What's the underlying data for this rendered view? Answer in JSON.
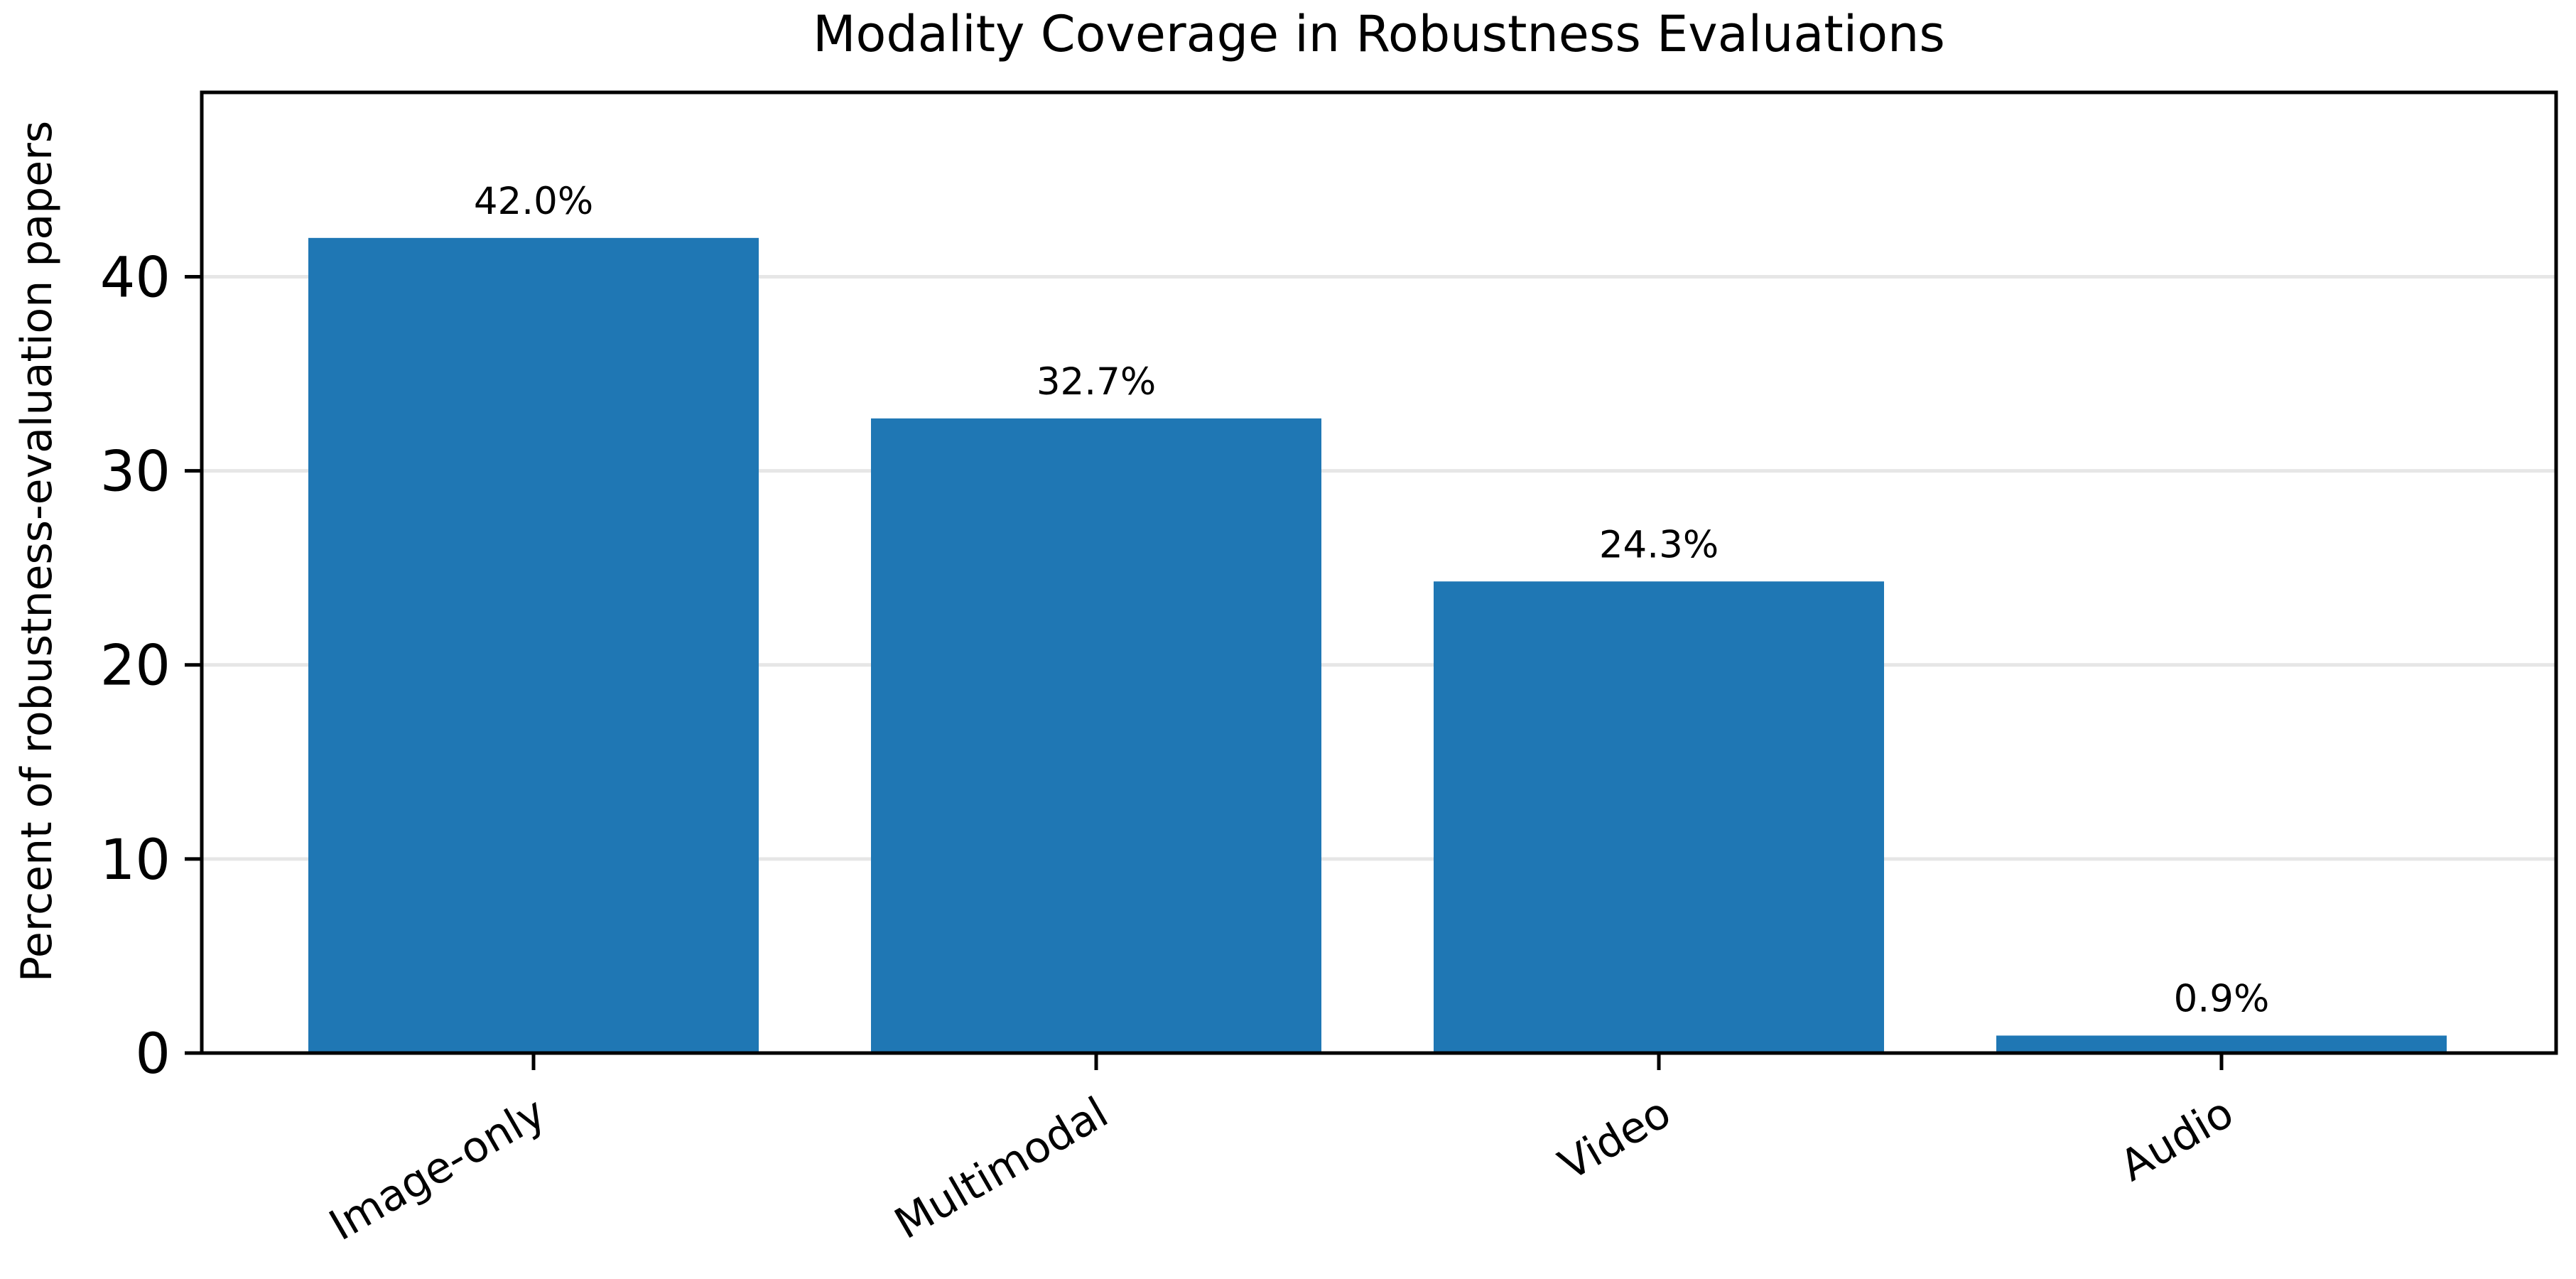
{
  "chart_data": {
    "type": "bar",
    "title": "Modality Coverage in Robustness Evaluations",
    "xlabel": "",
    "ylabel": "Percent of robustness-evaluation papers",
    "categories": [
      "Image-only",
      "Multimodal",
      "Video",
      "Audio"
    ],
    "values": [
      42.0,
      32.7,
      24.3,
      0.9
    ],
    "value_labels": [
      "42.0%",
      "32.7%",
      "24.3%",
      "0.9%"
    ],
    "ylim": [
      0,
      49.5
    ],
    "yticks": [
      0,
      10,
      20,
      30,
      40
    ],
    "grid": true,
    "grid_axis": "y",
    "legend": "none",
    "xtick_rotation": 30,
    "colors": {
      "bar": "#1f77b4",
      "grid": "#e6e6e6",
      "axis": "#000000"
    }
  }
}
